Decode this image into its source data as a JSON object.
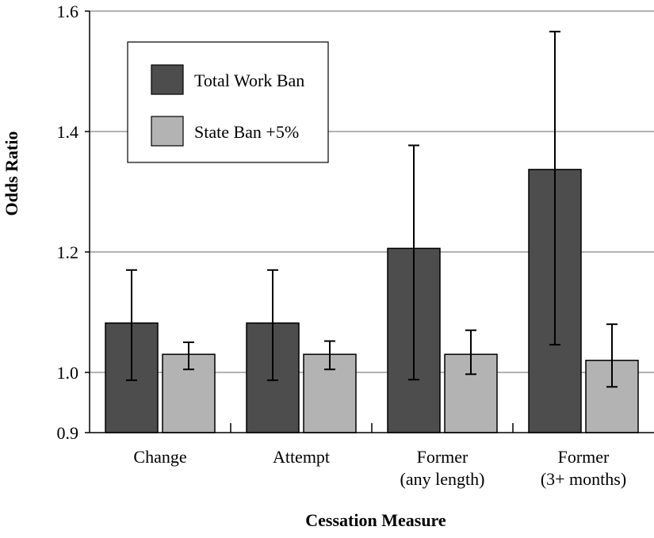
{
  "chart_data": {
    "type": "bar",
    "title": "",
    "xlabel": "Cessation Measure",
    "ylabel": "Odds Ratio",
    "categories": [
      [
        "Change"
      ],
      [
        "Attempt"
      ],
      [
        "Former",
        "(any length)"
      ],
      [
        "Former",
        "(3+ months)"
      ]
    ],
    "ylim": [
      0.9,
      1.6
    ],
    "yticks": [
      {
        "value": 0.9,
        "label": "0.9"
      },
      {
        "value": 1.0,
        "label": "1.0"
      },
      {
        "value": 1.2,
        "label": "1.2"
      },
      {
        "value": 1.4,
        "label": "1.4"
      },
      {
        "value": 1.6,
        "label": "1.6"
      }
    ],
    "grid": true,
    "legend_position": "top-left",
    "series": [
      {
        "name": "Total Work Ban",
        "color": "#4d4d4d",
        "values": [
          1.082,
          1.082,
          1.206,
          1.337
        ],
        "err_low": [
          0.987,
          0.987,
          0.988,
          1.046
        ],
        "err_high": [
          1.17,
          1.17,
          1.377,
          1.566
        ]
      },
      {
        "name": "State Ban +5%",
        "color": "#b3b3b3",
        "values": [
          1.03,
          1.03,
          1.03,
          1.02
        ],
        "err_low": [
          1.005,
          1.005,
          0.997,
          0.976
        ],
        "err_high": [
          1.05,
          1.052,
          1.07,
          1.08
        ]
      }
    ]
  }
}
